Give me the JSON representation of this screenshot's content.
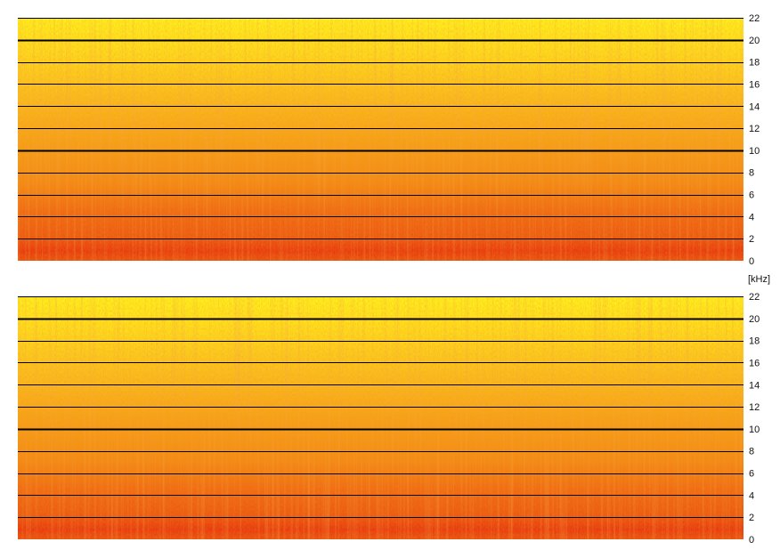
{
  "chart_data": {
    "type": "heatmap",
    "description_kind": "spectrogram",
    "unit_label": "[kHz]",
    "colors": {
      "low": "#e8300a",
      "mid": "#f6a012",
      "high": "#fff21a",
      "gridline": "#000000",
      "text": "#111111"
    },
    "panels": [
      {
        "name": "top",
        "y_axis": {
          "range": [
            0,
            22
          ],
          "ticks": [
            0,
            2,
            4,
            6,
            8,
            10,
            12,
            14,
            16,
            18,
            20,
            22
          ],
          "tick_labels": [
            "0",
            "2",
            "4",
            "6",
            "8",
            "10",
            "12",
            "14",
            "16",
            "18",
            "20",
            "22"
          ],
          "gridlines": [
            2,
            4,
            6,
            8,
            10,
            12,
            14,
            16,
            18,
            20,
            22
          ],
          "thick_gridlines": [
            10,
            20
          ]
        }
      },
      {
        "name": "bottom",
        "y_axis": {
          "range": [
            0,
            22
          ],
          "ticks": [
            0,
            2,
            4,
            6,
            8,
            10,
            12,
            14,
            16,
            18,
            20,
            22
          ],
          "tick_labels": [
            "0",
            "2",
            "4",
            "6",
            "8",
            "10",
            "12",
            "14",
            "16",
            "18",
            "20",
            "22"
          ],
          "gridlines": [
            2,
            4,
            6,
            8,
            10,
            12,
            14,
            16,
            18,
            20,
            22
          ],
          "thick_gridlines": [
            10,
            20
          ]
        }
      }
    ]
  }
}
